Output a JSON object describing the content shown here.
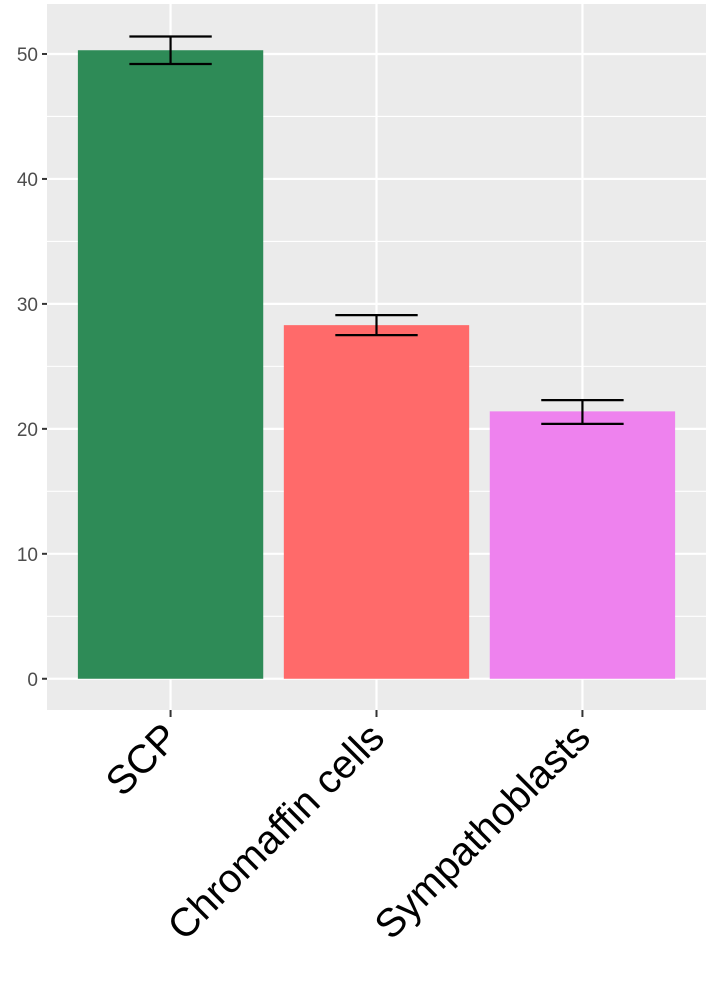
{
  "chart_data": {
    "type": "bar",
    "title": "",
    "xlabel": "",
    "ylabel": "",
    "categories": [
      "SCP",
      "Chromaffin cells",
      "Sympathoblasts"
    ],
    "values": [
      50.3,
      28.3,
      21.4
    ],
    "error_low": [
      49.2,
      27.5,
      20.4
    ],
    "error_high": [
      51.4,
      29.1,
      22.3
    ],
    "bar_colors": [
      "#2e8b57",
      "#ff6a6a",
      "#ee82ee"
    ],
    "ylim": [
      -2.5,
      54
    ],
    "yticks": [
      0,
      10,
      20,
      30,
      40,
      50
    ],
    "ytick_labels": [
      "0",
      "10",
      "20",
      "30",
      "40",
      "50"
    ],
    "grid": true,
    "legend": "none",
    "panel_background": "#ebebeb",
    "grid_color": "#ffffff"
  }
}
